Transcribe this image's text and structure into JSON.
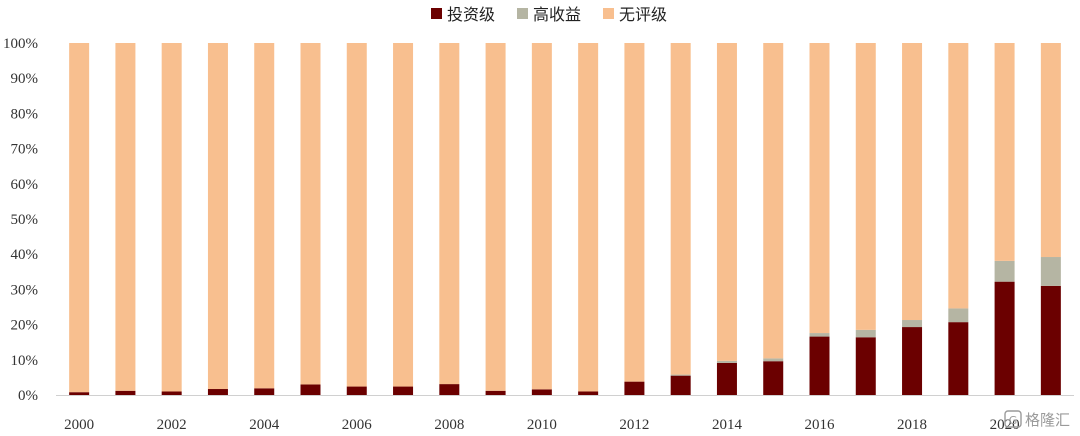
{
  "chart_data": {
    "type": "bar",
    "stacked": true,
    "percent": true,
    "categories": [
      "2000",
      "2001",
      "2002",
      "2003",
      "2004",
      "2005",
      "2006",
      "2007",
      "2008",
      "2009",
      "2010",
      "2011",
      "2012",
      "2013",
      "2014",
      "2015",
      "2016",
      "2017",
      "2018",
      "2019",
      "2020",
      "2021"
    ],
    "x_tick_labels": [
      "2000",
      "2002",
      "2004",
      "2006",
      "2008",
      "2010",
      "2012",
      "2014",
      "2016",
      "2018",
      "2020"
    ],
    "series": [
      {
        "name": "投资级",
        "color": "#6b0000",
        "values": [
          0.8,
          1.2,
          1.0,
          1.7,
          1.9,
          3.0,
          2.4,
          2.4,
          3.1,
          1.2,
          1.6,
          1.0,
          3.8,
          5.5,
          9.1,
          9.6,
          16.6,
          16.4,
          19.3,
          20.7,
          32.2,
          31.0
        ]
      },
      {
        "name": "高收益",
        "color": "#b5b5a3",
        "values": [
          0,
          0,
          0,
          0,
          0,
          0,
          0,
          0,
          0,
          0,
          0,
          0,
          0,
          0.3,
          0.6,
          0.8,
          1.0,
          2.1,
          2.0,
          3.9,
          5.9,
          8.2
        ]
      },
      {
        "name": "无评级",
        "color": "#f8bf8f",
        "values": [
          99.2,
          98.8,
          99.0,
          98.3,
          98.1,
          97.0,
          97.6,
          97.6,
          96.9,
          98.8,
          98.4,
          99.0,
          96.2,
          94.2,
          90.3,
          89.6,
          82.4,
          81.5,
          78.7,
          75.4,
          61.9,
          60.8
        ]
      }
    ],
    "ylim": [
      0,
      100
    ],
    "y_ticks": [
      "0%",
      "10%",
      "20%",
      "30%",
      "40%",
      "50%",
      "60%",
      "70%",
      "80%",
      "90%",
      "100%"
    ],
    "legend_position": "top-center",
    "grid": false
  },
  "watermark": {
    "text": "格隆汇",
    "icon": "gelonghui-logo-icon"
  }
}
